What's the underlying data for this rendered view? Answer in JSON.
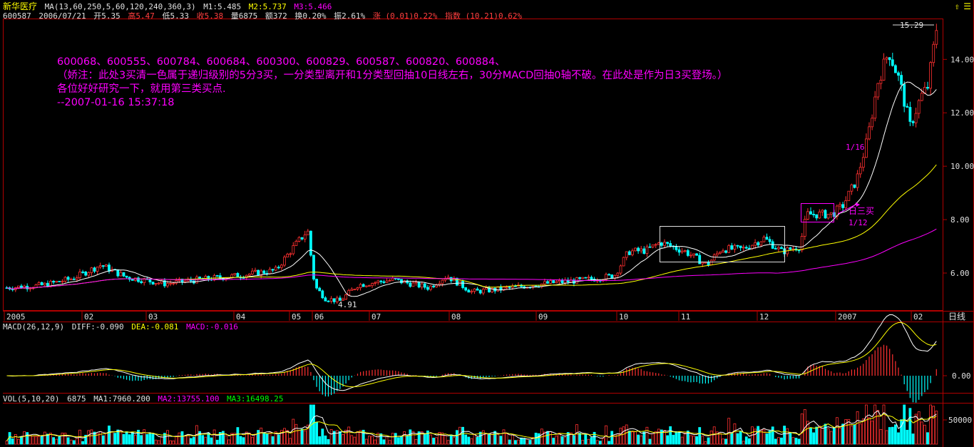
{
  "stock": {
    "name": "新华医疗",
    "ma_params": "MA(13,60,250,5,60,120,240,360,3)",
    "m1": "M1:5.485",
    "m2": "M2:5.737",
    "m3": "M3:5.466",
    "code": "600587",
    "date": "2006/07/21",
    "open": "开5.35",
    "high": "高5.47",
    "low": "低5.33",
    "close": "收5.38",
    "volume": "量6875",
    "amount": "额372",
    "turnover": "换0.20%",
    "amplitude": "振2.61%",
    "change": "涨 (0.01)0.22%",
    "index": "指数 (10.21)0.62%"
  },
  "annotation": [
    "600068、600555、600784、600684、600300、600829、600587、600820、600884、",
    "（娇注：此处3买清一色属于递归级别的5分3买，一分类型离开和1分类型回抽10日线左右，30分MACD回抽0轴不破。在此处是作为日3买登场。）",
    "各位好好研究一下，就用第三类买点.",
    "--2007-01-16 15:37:18"
  ],
  "marks": {
    "high_label": "15.29",
    "low_label": "4.91",
    "label_116": "1/16",
    "label_112": "1/12",
    "label_buy3": "日三买",
    "period": "日线"
  },
  "macd": {
    "params": "MACD(26,12,9)",
    "diff": "DIFF:-0.090",
    "dea": "DEA:-0.081",
    "macd": "MACD:-0.016"
  },
  "vol": {
    "params": "VOL(5,10,20)",
    "value": "6875",
    "ma1": "MA1:7960.200",
    "ma2": "MA2:13755.100",
    "ma3": "MA3:16498.25"
  },
  "colors": {
    "up": "#ff3030",
    "down": "#00ffff",
    "ma1": "#ffffff",
    "ma2": "#ffff00",
    "ma3": "#ff00ff",
    "axis": "#b00000"
  },
  "chart_data": {
    "type": "candlestick",
    "price_ticks": [
      "14.00",
      "12.00",
      "10.00",
      "8.00",
      "6.00"
    ],
    "macd_ticks": [
      "0.00"
    ],
    "vol_ticks": [
      "50000"
    ],
    "x_labels": [
      "2005",
      "02",
      "03",
      "04",
      "05",
      "06",
      "07",
      "08",
      "09",
      "10",
      "11",
      "12",
      "2007",
      "02"
    ],
    "ylim": [
      4.5,
      15.5
    ],
    "key_points": [
      {
        "x": "2005",
        "y": 5.5
      },
      {
        "x": "05",
        "y": 7.6
      },
      {
        "x": "06",
        "y": 4.91
      },
      {
        "x": "10",
        "y": 7.2
      },
      {
        "x": "2007",
        "y": 10.0
      },
      {
        "x": "02",
        "y": 15.29
      }
    ]
  }
}
